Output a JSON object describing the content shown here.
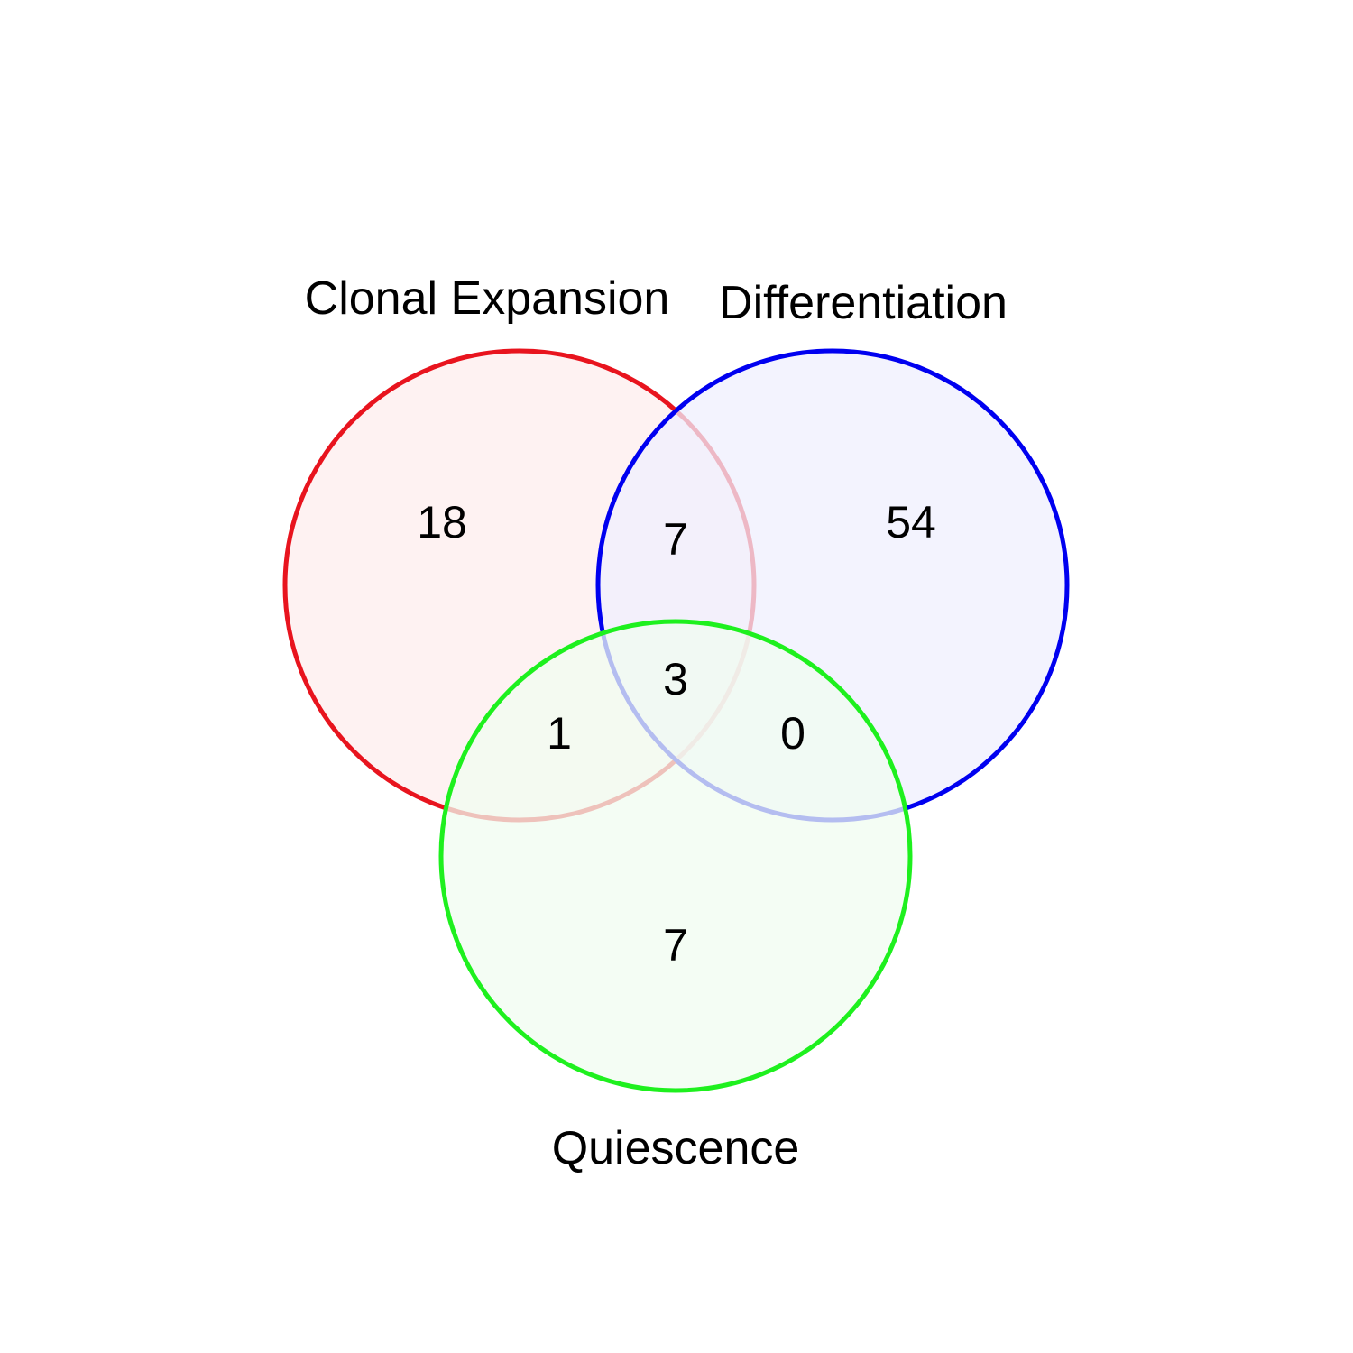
{
  "sets": [
    {
      "name": "Clonal Expansion",
      "stroke": "#e8141e",
      "fill": "#fdeeee"
    },
    {
      "name": "Differentiation",
      "stroke": "#0000f0",
      "fill": "#efeffd"
    },
    {
      "name": "Quiescence",
      "stroke": "#1ef01e",
      "fill": "#f0fcf0"
    }
  ],
  "regions": {
    "clonal_only": "18",
    "differentiation_only": "54",
    "quiescence_only": "7",
    "clonal_differentiation": "7",
    "clonal_quiescence": "1",
    "differentiation_quiescence": "0",
    "all_three": "3"
  }
}
